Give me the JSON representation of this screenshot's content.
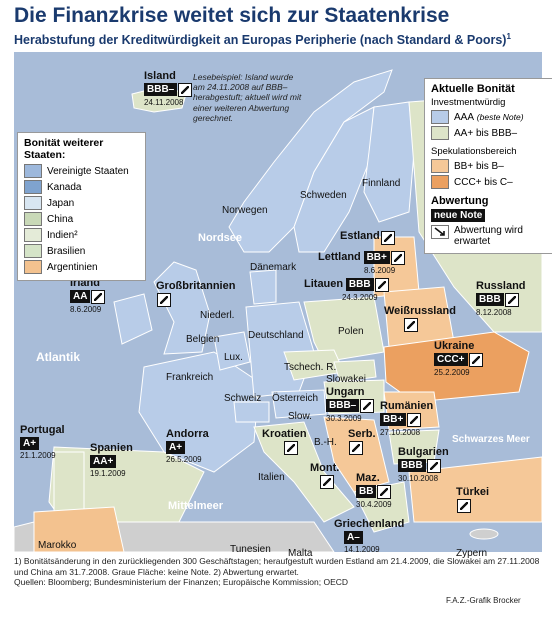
{
  "title": "Die Finanzkrise weitet sich zur Staatenkrise",
  "subtitle": "Herabstufung der Kreditwürdigkeit an Europas Peripherie (nach Standard & Poors)",
  "subtitle_footnote": "1",
  "colors": {
    "sea": "#a8bcd8",
    "aaa": "#b8cce8",
    "aa_bbb": "#dde4c8",
    "bb_b": "#f5c898",
    "ccc_c": "#eba060",
    "nonote": "#cfcfcf",
    "us": "#9db8dc",
    "ca": "#7fa3cf",
    "jp": "#d8e6f2",
    "cn": "#c9d9b8",
    "in": "#e4ebd8",
    "br": "#d5e4c8",
    "ar": "#f3c28f"
  },
  "seas": {
    "nordsee": "Nordsee",
    "atlantik": "Atlantik",
    "schwarzes_meer": "Schwarzes Meer",
    "mittelmeer": "Mittelmeer"
  },
  "note": "Lesebeispiel: Island wurde am 24.11.2008 auf BBB– herabgestuft; aktuell wird mit einer weiteren Abwertung gerechnet.",
  "legend_left": {
    "title": "Bonität weiterer Staaten:",
    "items": [
      {
        "label": "Vereinigte Staaten",
        "color": "#9db8dc"
      },
      {
        "label": "Kanada",
        "color": "#7fa3cf"
      },
      {
        "label": "Japan",
        "color": "#d8e6f2"
      },
      {
        "label": "China",
        "color": "#c9d9b8"
      },
      {
        "label": "Indien²",
        "color": "#e4ebd8"
      },
      {
        "label": "Brasilien",
        "color": "#d5e4c8"
      },
      {
        "label": "Argentinien",
        "color": "#f3c28f"
      }
    ]
  },
  "legend_right": {
    "title": "Aktuelle Bonität",
    "invest_label": "Investmentwürdig",
    "aaa_label": "AAA",
    "aaa_note": "(beste Note)",
    "aa_label": "AA+ bis BBB–",
    "spec_label": "Spekulationsbereich",
    "bb_label": "BB+ bis B–",
    "ccc_label": "CCC+ bis C–",
    "abw_title": "Abwertung",
    "new_note": "neue Note",
    "abw_expected": "Abwertung wird erwartet"
  },
  "countries": [
    {
      "label": "Schweden"
    },
    {
      "label": "Finnland"
    },
    {
      "label": "Norwegen"
    },
    {
      "label": "Dänemark"
    },
    {
      "label": "Niederl."
    },
    {
      "label": "Deutschland"
    },
    {
      "label": "Polen"
    },
    {
      "label": "Belgien"
    },
    {
      "label": "Lux."
    },
    {
      "label": "Tschech. R."
    },
    {
      "label": "Slowakei"
    },
    {
      "label": "Frankreich"
    },
    {
      "label": "Schweiz"
    },
    {
      "label": "Österreich"
    },
    {
      "label": "Slow."
    },
    {
      "label": "B.-H."
    },
    {
      "label": "Italien"
    },
    {
      "label": "Tunesien"
    },
    {
      "label": "Malta"
    },
    {
      "label": "Marokko"
    },
    {
      "label": "Zypern"
    }
  ],
  "ratings": [
    {
      "name": "Island",
      "rating": "BBB–",
      "date": "24.11.2008",
      "expected": true
    },
    {
      "name": "Irland",
      "rating": "AA",
      "date": "8.6.2009",
      "expected": true
    },
    {
      "name": "Großbritannien",
      "rating": "",
      "date": "",
      "expected": true
    },
    {
      "name": "Estland",
      "rating": "",
      "date": "",
      "expected": true
    },
    {
      "name": "Lettland",
      "rating": "BB+",
      "date": "8.6.2009",
      "expected": true
    },
    {
      "name": "Litauen",
      "rating": "BBB",
      "date": "24.3.2009",
      "expected": true
    },
    {
      "name": "Weißrussland",
      "rating": "",
      "date": "",
      "expected": true
    },
    {
      "name": "Russland",
      "rating": "BBB",
      "date": "8.12.2008",
      "expected": true
    },
    {
      "name": "Ukraine",
      "rating": "CCC+",
      "date": "25.2.2009",
      "expected": true
    },
    {
      "name": "Portugal",
      "rating": "A+",
      "date": "21.1.2009",
      "expected": false
    },
    {
      "name": "Spanien",
      "rating": "AA+",
      "date": "19.1.2009",
      "expected": false
    },
    {
      "name": "Andorra",
      "rating": "A+",
      "date": "26.5.2009",
      "expected": false
    },
    {
      "name": "Ungarn",
      "rating": "BBB–",
      "date": "30.3.2009",
      "expected": true
    },
    {
      "name": "Rumänien",
      "rating": "BB+",
      "date": "27.10.2008",
      "expected": true
    },
    {
      "name": "Kroatien",
      "rating": "",
      "date": "",
      "expected": true
    },
    {
      "name": "Serb.",
      "rating": "",
      "date": "",
      "expected": true
    },
    {
      "name": "Bulgarien",
      "rating": "BBB",
      "date": "30.10.2008",
      "expected": true
    },
    {
      "name": "Mont.",
      "rating": "",
      "date": "",
      "expected": true
    },
    {
      "name": "Maz.",
      "rating": "BB",
      "date": "30.4.2009",
      "expected": true
    },
    {
      "name": "Türkei",
      "rating": "",
      "date": "",
      "expected": true
    },
    {
      "name": "Griechenland",
      "rating": "A–",
      "date": "14.1.2009",
      "expected": false
    }
  ],
  "footer": {
    "line1": "1) Bonitätsänderung in den zurückliegenden 300 Geschäftstagen; heraufgestuft wurden Estland am 21.4.2009, die Slowakei am 27.11.2008 und China am 31.7.2008. Graue Fläche: keine Note. 2) Abwertung erwartet.",
    "line2": "Quellen: Bloomberg; Bundesministerium der Finanzen; Europäische Kommission; OECD",
    "credit": "F.A.Z.-Grafik Brocker"
  }
}
